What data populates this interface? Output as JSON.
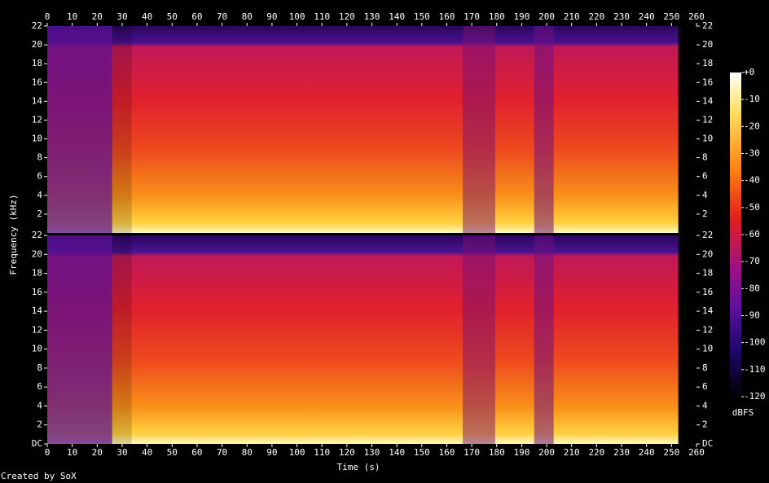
{
  "chart_data": {
    "type": "spectrogram",
    "xlabel": "Time (s)",
    "ylabel": "Frequency (kHz)",
    "xlim": [
      0,
      260
    ],
    "xticks": [
      0,
      10,
      20,
      30,
      40,
      50,
      60,
      70,
      80,
      90,
      100,
      110,
      120,
      130,
      140,
      150,
      160,
      170,
      180,
      190,
      200,
      210,
      220,
      230,
      240,
      250,
      260
    ],
    "panels": [
      {
        "ylim": [
          0,
          22
        ],
        "yticks": [
          2,
          4,
          6,
          8,
          10,
          12,
          14,
          16,
          18,
          20,
          22
        ]
      },
      {
        "ylim": [
          0,
          22
        ],
        "yticks": [
          {
            "value": 0,
            "label": "DC"
          },
          2,
          4,
          6,
          8,
          10,
          12,
          14,
          16,
          18,
          20,
          22
        ]
      }
    ],
    "colorbar": {
      "label": "dBFS",
      "lim": [
        -120,
        0
      ],
      "ticks": [
        {
          "value": 0,
          "label": "+0"
        },
        -10,
        -20,
        -30,
        -40,
        -50,
        -60,
        -70,
        -80,
        -90,
        -100,
        -110,
        -120
      ]
    }
  },
  "credit": "Created by SoX"
}
